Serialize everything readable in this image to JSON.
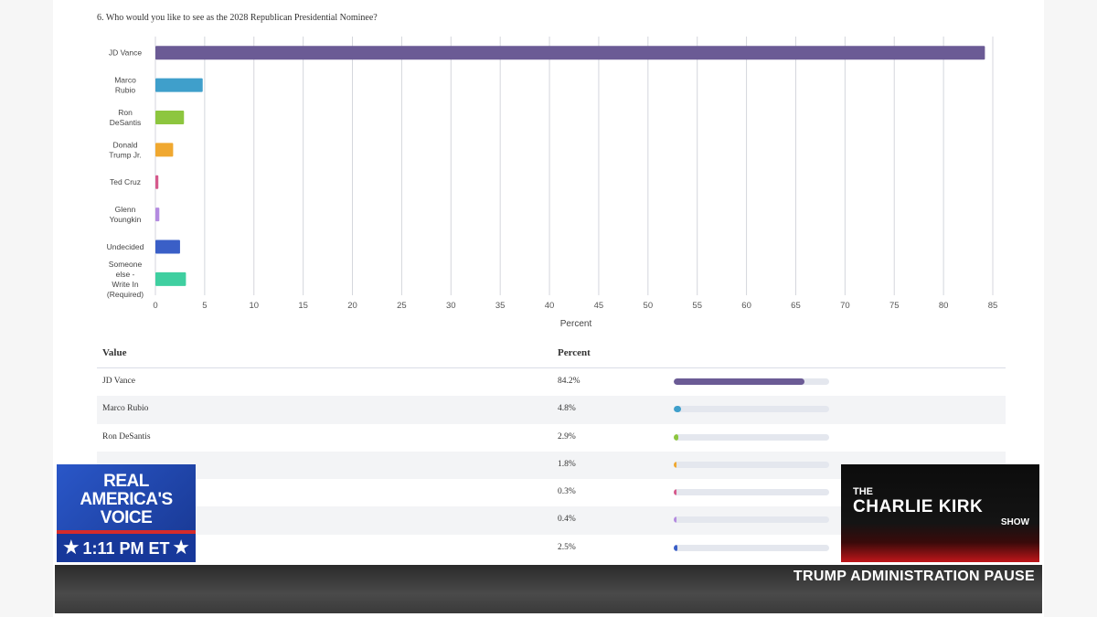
{
  "question": "6. Who would you like to see as the 2028 Republican Presidential Nominee?",
  "chart_data": {
    "type": "bar",
    "orientation": "horizontal",
    "title": "6. Who would you like to see as the 2028 Republican Presidential Nominee?",
    "xlabel": "Percent",
    "ylabel": "",
    "xlim": [
      0,
      85
    ],
    "xticks": [
      0,
      5,
      10,
      15,
      20,
      25,
      30,
      35,
      40,
      45,
      50,
      55,
      60,
      65,
      70,
      75,
      80,
      85
    ],
    "grid": true,
    "legend": "none",
    "categories": [
      [
        "JD Vance"
      ],
      [
        "Marco",
        "Rubio"
      ],
      [
        "Ron",
        "DeSantis"
      ],
      [
        "Donald",
        "Trump Jr."
      ],
      [
        "Ted Cruz"
      ],
      [
        "Glenn",
        "Youngkin"
      ],
      [
        "Undecided"
      ],
      [
        "Someone",
        "else -",
        "Write In",
        "(Required)"
      ]
    ],
    "values": [
      84.2,
      4.8,
      2.9,
      1.8,
      0.3,
      0.4,
      2.5,
      3.1
    ],
    "colors": [
      "#6b5b95",
      "#3f9fcb",
      "#8dc63f",
      "#f0a830",
      "#d65a8c",
      "#b48be0",
      "#3a5fc7",
      "#3fcfa0"
    ]
  },
  "table": {
    "headers": {
      "value": "Value",
      "percent": "Percent"
    },
    "rows": [
      {
        "name": "JD Vance",
        "pct": "84.2%",
        "value": 84.2
      },
      {
        "name": "Marco Rubio",
        "pct": "4.8%",
        "value": 4.8
      },
      {
        "name": "Ron DeSantis",
        "pct": "2.9%",
        "value": 2.9
      },
      {
        "name": "",
        "pct": "1.8%",
        "value": 1.8
      },
      {
        "name": "",
        "pct": "0.3%",
        "value": 0.3
      },
      {
        "name": "",
        "pct": "0.4%",
        "value": 0.4
      },
      {
        "name": "",
        "pct": "2.5%",
        "value": 2.5
      }
    ]
  },
  "overlay": {
    "network_line1": "REAL",
    "network_line2": "AMERICA'S",
    "network_line3": "VOICE",
    "time": "1:11 PM ET",
    "show_the": "THE",
    "show_name": "CHARLIE KIRK",
    "show_word": "SHOW",
    "ticker": "TRUMP ADMINISTRATION PAUSE"
  }
}
